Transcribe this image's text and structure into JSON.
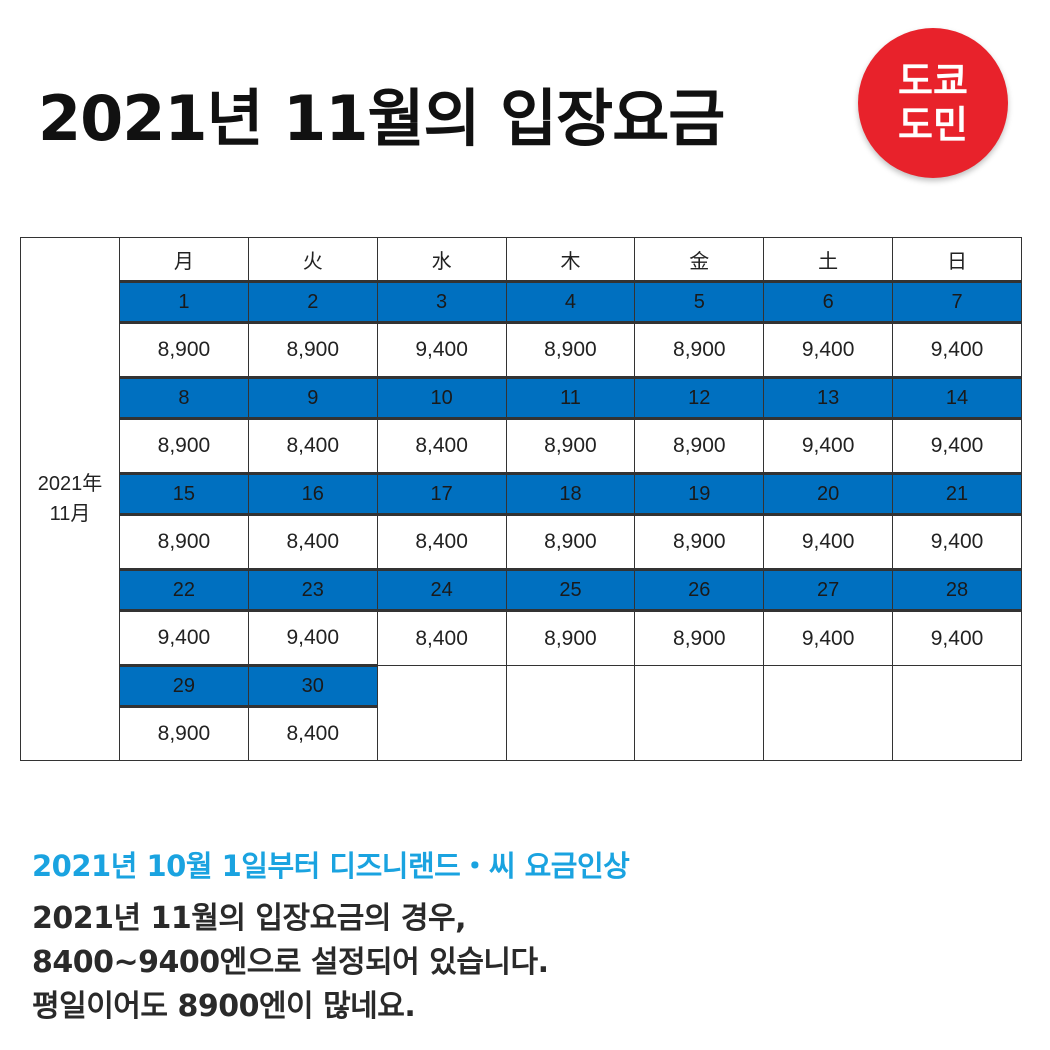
{
  "title": "2021년 11월의 입장요금",
  "logo": {
    "line1": "도쿄",
    "line2": "도민",
    "color": "#e8222b"
  },
  "table": {
    "year_label": "2021年",
    "month_label": "11月",
    "weekdays": [
      "月",
      "火",
      "水",
      "木",
      "金",
      "土",
      "日"
    ],
    "header_color": "#0070c0",
    "weeks": [
      {
        "dates": [
          "1",
          "2",
          "3",
          "4",
          "5",
          "6",
          "7"
        ],
        "prices": [
          "8,900",
          "8,900",
          "9,400",
          "8,900",
          "8,900",
          "9,400",
          "9,400"
        ]
      },
      {
        "dates": [
          "8",
          "9",
          "10",
          "11",
          "12",
          "13",
          "14"
        ],
        "prices": [
          "8,900",
          "8,400",
          "8,400",
          "8,900",
          "8,900",
          "9,400",
          "9,400"
        ]
      },
      {
        "dates": [
          "15",
          "16",
          "17",
          "18",
          "19",
          "20",
          "21"
        ],
        "prices": [
          "8,900",
          "8,400",
          "8,400",
          "8,900",
          "8,900",
          "9,400",
          "9,400"
        ]
      },
      {
        "dates": [
          "22",
          "23",
          "24",
          "25",
          "26",
          "27",
          "28"
        ],
        "prices": [
          "9,400",
          "9,400",
          "8,400",
          "8,900",
          "8,900",
          "9,400",
          "9,400"
        ]
      },
      {
        "dates": [
          "29",
          "30"
        ],
        "prices": [
          "8,900",
          "8,400"
        ]
      }
    ]
  },
  "info": {
    "heading": "2021년 10월 1일부터 디즈니랜드・씨 요금인상",
    "lines": [
      "2021년 11월의 입장요금의 경우,",
      "8400~9400엔으로 설정되어 있습니다.",
      "평일이어도 8900엔이 많네요."
    ],
    "heading_color": "#1aa3e0"
  }
}
